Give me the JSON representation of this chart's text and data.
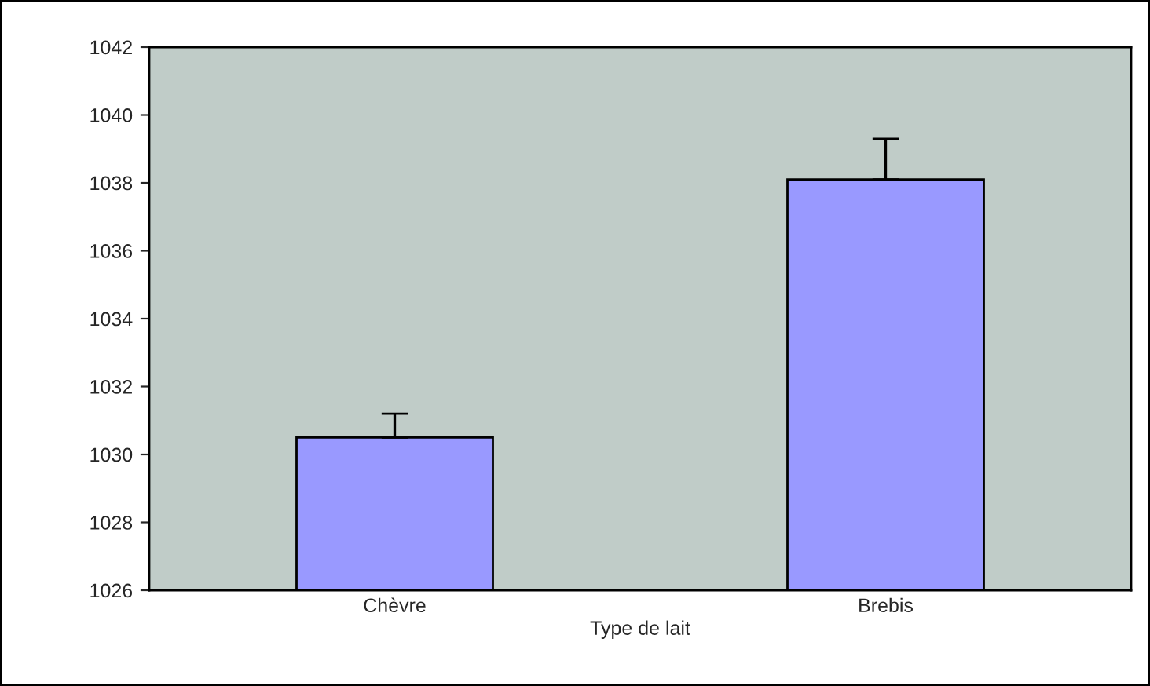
{
  "chart_data": {
    "type": "bar",
    "xlabel": "Type de lait",
    "categories": [
      "Chèvre",
      "Brebis"
    ],
    "values": [
      1030.5,
      1038.1
    ],
    "errors": [
      [
        1030.5,
        1031.2
      ],
      [
        1038.1,
        1039.3
      ]
    ],
    "color": "#9999ff",
    "ylim": [
      1026,
      1042
    ],
    "yticks": [
      1026,
      1028,
      1030,
      1032,
      1034,
      1036,
      1038,
      1040,
      1042
    ],
    "grid": false
  }
}
